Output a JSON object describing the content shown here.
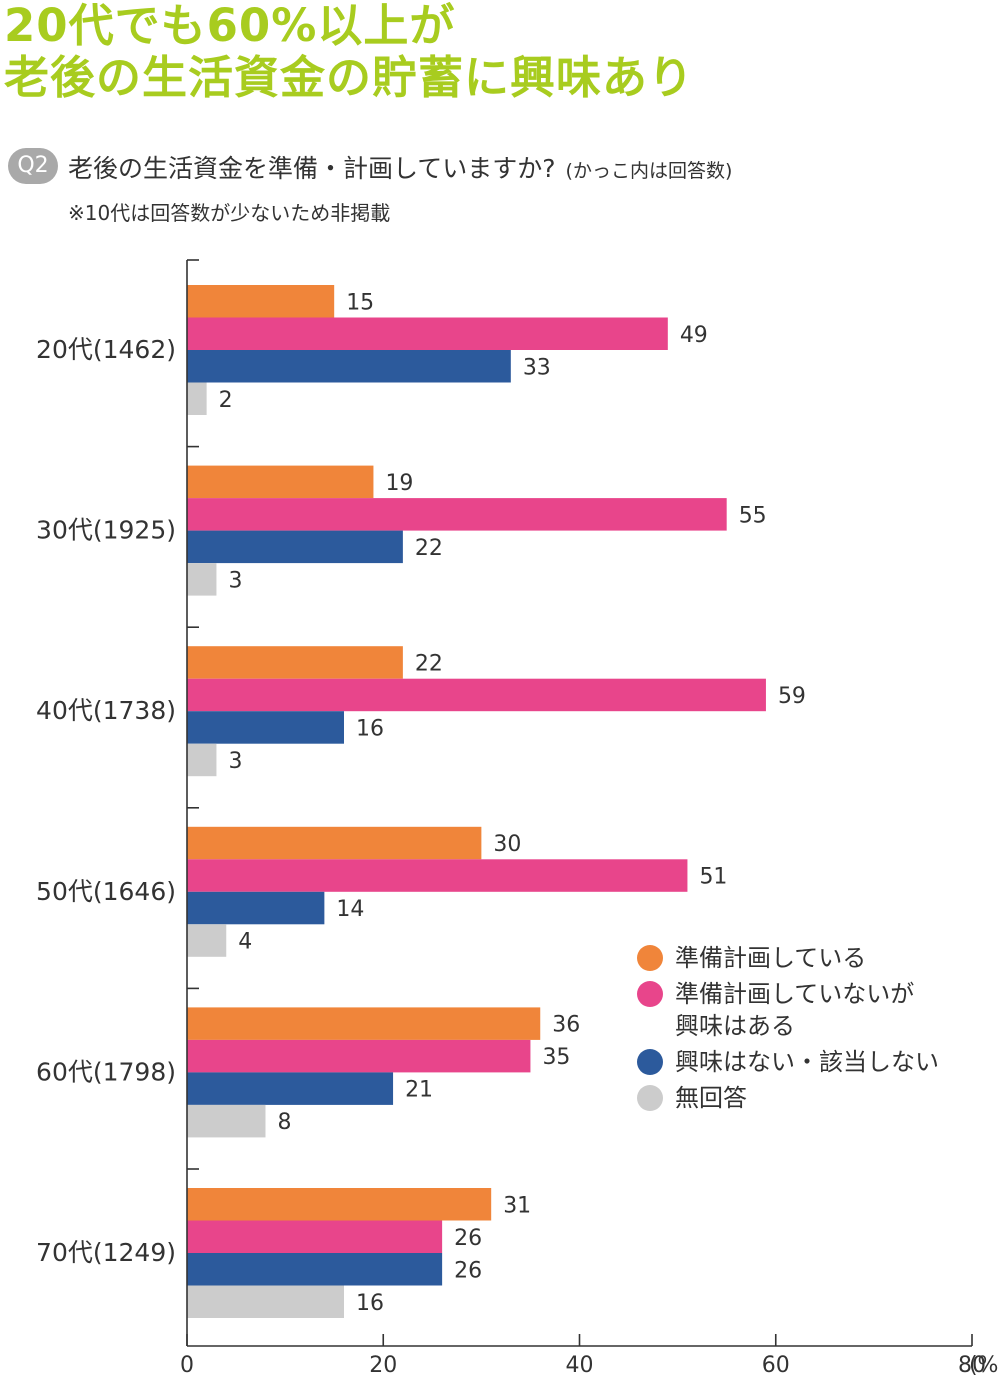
{
  "headline": {
    "line1": "20代でも60%以上が",
    "line2": "老後の生活資金の貯蓄に興味あり"
  },
  "question": {
    "badge": "Q2",
    "text": "老後の生活資金を準備・計画していますか?",
    "sub": "(かっこ内は回答数)",
    "note": "※10代は回答数が少ないため非掲載"
  },
  "chart_data": {
    "type": "bar",
    "orientation": "horizontal",
    "categories": [
      "20代(1462)",
      "30代(1925)",
      "40代(1738)",
      "50代(1646)",
      "60代(1798)",
      "70代(1249)"
    ],
    "series": [
      {
        "name": "準備計画している",
        "color": "#f0853a",
        "values": [
          15,
          19,
          22,
          30,
          36,
          31
        ]
      },
      {
        "name": "準備計画していないが興味はある",
        "color": "#e8458b",
        "values": [
          49,
          55,
          59,
          51,
          35,
          26
        ]
      },
      {
        "name": "興味はない・該当しない",
        "color": "#2c5a9c",
        "values": [
          33,
          22,
          16,
          14,
          21,
          26
        ]
      },
      {
        "name": "無回答",
        "color": "#cccccc",
        "values": [
          2,
          3,
          3,
          4,
          8,
          16
        ]
      }
    ],
    "xlim": [
      0,
      80
    ],
    "xticks": [
      "0",
      "20",
      "40",
      "60",
      "80"
    ],
    "xunit": "(%)",
    "grid": false,
    "legend_position": "lower-right"
  },
  "legend": {
    "items": [
      {
        "label": "準備計画している",
        "color": "#f0853a"
      },
      {
        "label": "準備計画していないが\n興味はある",
        "color": "#e8458b"
      },
      {
        "label": "興味はない・該当しない",
        "color": "#2c5a9c"
      },
      {
        "label": "無回答",
        "color": "#cccccc"
      }
    ]
  }
}
